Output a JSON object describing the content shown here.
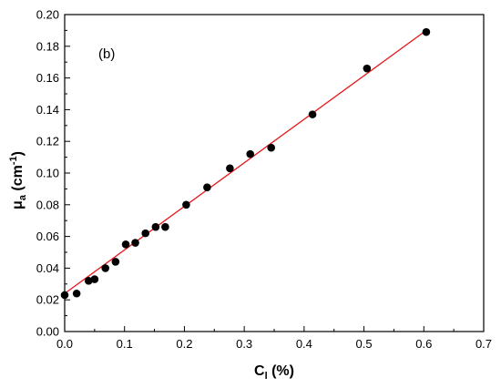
{
  "chart_data": {
    "type": "scatter",
    "annotation": "(b)",
    "xlabel": {
      "main": "C",
      "sub": "l",
      "rest": " (%)"
    },
    "ylabel": {
      "main": "μ",
      "sub": "a",
      "mid": " (cm",
      "sup": "-1",
      "end": ")"
    },
    "xlim": [
      0.0,
      0.7
    ],
    "ylim": [
      0.0,
      0.2
    ],
    "xticks": [
      0.0,
      0.1,
      0.2,
      0.3,
      0.4,
      0.5,
      0.6,
      0.7
    ],
    "yticks": [
      0.0,
      0.02,
      0.04,
      0.06,
      0.08,
      0.1,
      0.12,
      0.14,
      0.16,
      0.18,
      0.2
    ],
    "xtick_labels": [
      "0.0",
      "0.1",
      "0.2",
      "0.3",
      "0.4",
      "0.5",
      "0.6",
      "0.7"
    ],
    "ytick_labels": [
      "0.00",
      "0.02",
      "0.04",
      "0.06",
      "0.08",
      "0.10",
      "0.12",
      "0.14",
      "0.16",
      "0.18",
      "0.20"
    ],
    "grid": false,
    "series": [
      {
        "marker_color": "#000000",
        "x": [
          0.0,
          0.02,
          0.04,
          0.05,
          0.068,
          0.085,
          0.102,
          0.118,
          0.135,
          0.152,
          0.168,
          0.203,
          0.238,
          0.276,
          0.31,
          0.345,
          0.414,
          0.505,
          0.604
        ],
        "y": [
          0.023,
          0.024,
          0.032,
          0.033,
          0.04,
          0.044,
          0.055,
          0.056,
          0.062,
          0.066,
          0.066,
          0.08,
          0.091,
          0.103,
          0.112,
          0.116,
          0.137,
          0.166,
          0.189
        ]
      }
    ],
    "fit_line": {
      "color": "#e8161b",
      "x": [
        0.0,
        0.604
      ],
      "y": [
        0.024,
        0.19
      ]
    }
  }
}
